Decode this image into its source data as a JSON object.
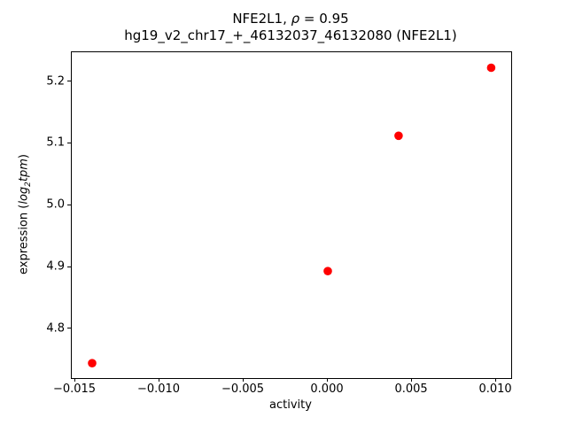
{
  "chart_data": {
    "type": "scatter",
    "title": "NFE2L1, ρ = 0.95",
    "title_parts": {
      "gene": "NFE2L1, ",
      "rho_symbol": "ρ",
      "rho_value": " = 0.95"
    },
    "subtitle": "hg19_v2_chr17_+_46132037_46132080 (NFE2L1)",
    "xlabel": "activity",
    "ylabel": "expression (log2tpm)",
    "ylabel_parts": {
      "prefix": "expression (",
      "log": "log",
      "sub": "2",
      "tpm": "tpm",
      "suffix": ")"
    },
    "marker_color": "#ff0000",
    "marker_radius": 4.8,
    "series": [
      {
        "name": "points",
        "points": [
          {
            "x": -0.014,
            "y": 4.745
          },
          {
            "x": 0.0,
            "y": 4.894
          },
          {
            "x": 0.0042,
            "y": 5.113
          },
          {
            "x": 0.0097,
            "y": 5.223
          }
        ]
      }
    ],
    "xlim": [
      -0.01521,
      0.01089
    ],
    "ylim": [
      4.721,
      5.248
    ],
    "x_ticks": [
      {
        "value": -0.015,
        "label": "−0.015"
      },
      {
        "value": -0.01,
        "label": "−0.010"
      },
      {
        "value": -0.005,
        "label": "−0.005"
      },
      {
        "value": 0.0,
        "label": "0.000"
      },
      {
        "value": 0.005,
        "label": "0.005"
      },
      {
        "value": 0.01,
        "label": "0.010"
      }
    ],
    "y_ticks": [
      {
        "value": 4.8,
        "label": "4.8"
      },
      {
        "value": 4.9,
        "label": "4.9"
      },
      {
        "value": 5.0,
        "label": "5.0"
      },
      {
        "value": 5.1,
        "label": "5.1"
      },
      {
        "value": 5.2,
        "label": "5.2"
      }
    ],
    "grid": false
  }
}
